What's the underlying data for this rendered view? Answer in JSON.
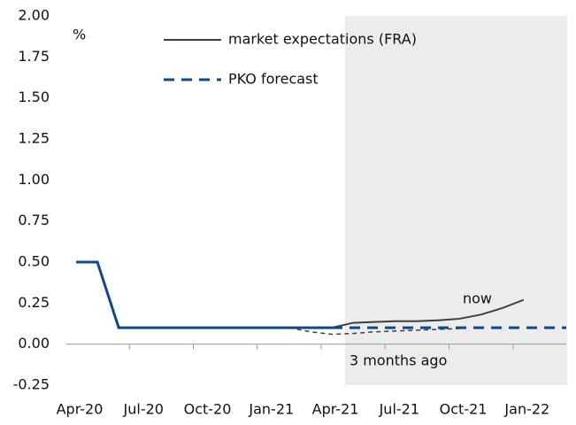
{
  "chart_data": {
    "type": "line",
    "categories": [
      "Apr-20",
      null,
      null,
      "Jul-20",
      null,
      null,
      "Oct-20",
      null,
      null,
      "Jan-21",
      null,
      null,
      "Apr-21",
      null,
      null,
      "Jul-21",
      null,
      null,
      "Oct-21",
      null,
      null,
      "Jan-22",
      null,
      null
    ],
    "series": [
      {
        "name": "market expectations (FRA)",
        "color": "#404040",
        "dash": false,
        "width": 2,
        "values": [
          null,
          null,
          null,
          null,
          null,
          null,
          null,
          null,
          null,
          null,
          null,
          null,
          0.1,
          0.13,
          0.135,
          0.14,
          0.14,
          0.145,
          0.155,
          0.18,
          0.22,
          0.27,
          null,
          null
        ]
      },
      {
        "name": "PKO forecast",
        "color": "#0b4a8c",
        "dash": true,
        "width": 3,
        "values": [
          null,
          null,
          null,
          null,
          null,
          null,
          null,
          null,
          null,
          null,
          null,
          null,
          0.1,
          0.1,
          0.1,
          0.1,
          0.1,
          0.1,
          0.1,
          0.1,
          0.1,
          0.1,
          0.1,
          0.1
        ]
      },
      {
        "color": "#0b4a8c",
        "dash": false,
        "width": 3,
        "values": [
          0.5,
          0.5,
          0.1,
          0.1,
          0.1,
          0.1,
          0.1,
          0.1,
          0.1,
          0.1,
          0.1,
          0.1,
          0.1,
          null,
          null,
          null,
          null,
          null,
          null,
          null,
          null,
          null,
          null,
          null
        ]
      },
      {
        "color": "#404040",
        "dash": true,
        "width": 1.5,
        "values": [
          null,
          null,
          null,
          null,
          null,
          null,
          null,
          null,
          null,
          null,
          0.1,
          0.075,
          0.06,
          0.065,
          0.075,
          0.08,
          0.085,
          0.09,
          0.095,
          null,
          null,
          null,
          null,
          null
        ]
      }
    ],
    "ylim": [
      -0.25,
      2
    ],
    "yticks": [
      {
        "value": 2,
        "label": "2.00"
      },
      1.75,
      {
        "value": 1.5,
        "label": "1.50"
      },
      1.25,
      {
        "value": 1,
        "label": "1.00"
      },
      0.75,
      {
        "value": 0.5,
        "label": "0.50"
      },
      0.25,
      {
        "value": 0,
        "label": "0.00"
      },
      -0.25
    ],
    "y_unit": "%",
    "annotations": [
      "now",
      "3 months ago"
    ],
    "grid": false
  }
}
